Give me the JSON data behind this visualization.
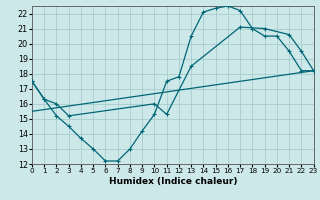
{
  "xlabel": "Humidex (Indice chaleur)",
  "background_color": "#cce8e8",
  "grid_color": "#aacccc",
  "line_color": "#006677",
  "xlim": [
    0,
    23
  ],
  "ylim": [
    12,
    22.5
  ],
  "xticks": [
    0,
    1,
    2,
    3,
    4,
    5,
    6,
    7,
    8,
    9,
    10,
    11,
    12,
    13,
    14,
    15,
    16,
    17,
    18,
    19,
    20,
    21,
    22,
    23
  ],
  "yticks": [
    12,
    13,
    14,
    15,
    16,
    17,
    18,
    19,
    20,
    21,
    22
  ],
  "curve1_x": [
    0,
    1,
    2,
    3,
    4,
    5,
    6,
    7,
    8,
    9,
    10,
    11,
    12,
    13,
    14,
    15,
    16,
    17,
    18,
    19,
    20,
    21,
    22,
    23
  ],
  "curve1_y": [
    17.5,
    16.3,
    15.2,
    14.5,
    13.7,
    13.0,
    12.2,
    12.2,
    13.0,
    14.2,
    15.3,
    17.5,
    17.8,
    20.5,
    22.1,
    22.35,
    22.5,
    22.2,
    21.0,
    20.5,
    20.5,
    19.5,
    18.2,
    18.2
  ],
  "curve2_x": [
    0,
    1,
    2,
    3,
    10,
    11,
    13,
    17,
    19,
    21,
    22,
    23
  ],
  "curve2_y": [
    17.5,
    16.3,
    16.0,
    15.2,
    16.0,
    15.3,
    18.5,
    21.1,
    21.0,
    20.6,
    19.5,
    18.2
  ],
  "line3_x": [
    0,
    23
  ],
  "line3_y": [
    15.5,
    18.2
  ]
}
